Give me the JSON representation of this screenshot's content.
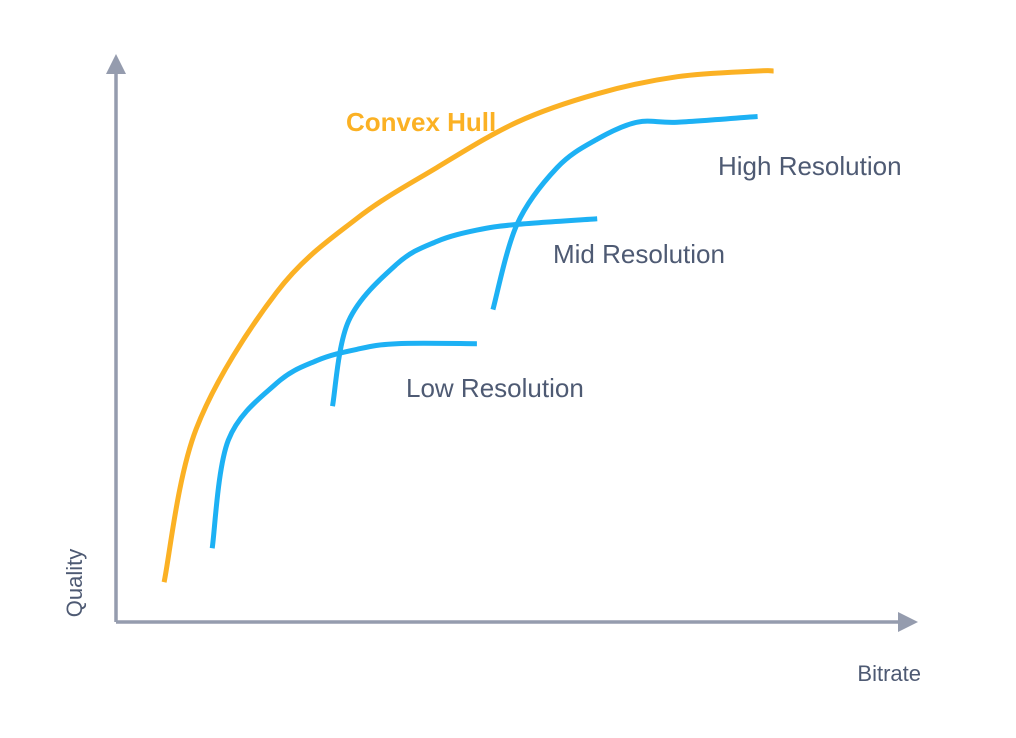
{
  "chart_data": {
    "type": "line",
    "xlabel": "Bitrate",
    "ylabel": "Quality",
    "grid": false,
    "ticks": false,
    "colors": {
      "axis": "#959cae",
      "hull": "#fbb124",
      "resolution": "#1db1f4",
      "text": "#4e5a73"
    },
    "series": [
      {
        "name": "Convex Hull",
        "color": "#fbb124",
        "points": [
          [
            0.06,
            0.07
          ],
          [
            0.1,
            0.34
          ],
          [
            0.2,
            0.58
          ],
          [
            0.3,
            0.71
          ],
          [
            0.4,
            0.8
          ],
          [
            0.5,
            0.88
          ],
          [
            0.6,
            0.93
          ],
          [
            0.7,
            0.96
          ],
          [
            0.8,
            0.97
          ],
          [
            0.82,
            0.97
          ]
        ]
      },
      {
        "name": "Low Resolution",
        "color": "#1db1f4",
        "points": [
          [
            0.12,
            0.13
          ],
          [
            0.14,
            0.32
          ],
          [
            0.2,
            0.42
          ],
          [
            0.25,
            0.46
          ],
          [
            0.3,
            0.48
          ],
          [
            0.35,
            0.49
          ],
          [
            0.45,
            0.49
          ]
        ]
      },
      {
        "name": "Mid Resolution",
        "color": "#1db1f4",
        "points": [
          [
            0.27,
            0.38
          ],
          [
            0.29,
            0.53
          ],
          [
            0.35,
            0.63
          ],
          [
            0.4,
            0.67
          ],
          [
            0.45,
            0.69
          ],
          [
            0.5,
            0.7
          ],
          [
            0.6,
            0.71
          ]
        ]
      },
      {
        "name": "High Resolution",
        "color": "#1db1f4",
        "points": [
          [
            0.47,
            0.55
          ],
          [
            0.5,
            0.7
          ],
          [
            0.55,
            0.8
          ],
          [
            0.6,
            0.85
          ],
          [
            0.65,
            0.88
          ],
          [
            0.7,
            0.88
          ],
          [
            0.8,
            0.89
          ]
        ]
      }
    ]
  }
}
